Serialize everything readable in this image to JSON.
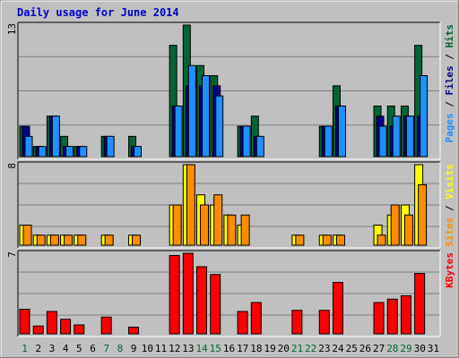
{
  "chart_data": {
    "type": "bar",
    "title": "Daily usage for June 2014",
    "categories": [
      "1",
      "2",
      "3",
      "4",
      "5",
      "6",
      "7",
      "8",
      "9",
      "10",
      "11",
      "12",
      "13",
      "14",
      "15",
      "16",
      "17",
      "18",
      "19",
      "20",
      "21",
      "22",
      "23",
      "24",
      "25",
      "26",
      "27",
      "28",
      "29",
      "30",
      "31"
    ],
    "weekend_days": [
      "1",
      "7",
      "8",
      "14",
      "15",
      "21",
      "22",
      "28",
      "29"
    ],
    "panels": [
      {
        "id": "hits-files-pages",
        "max_label": "13",
        "ylim": [
          0,
          13
        ],
        "legend": [
          "Pages",
          "Files",
          "Hits"
        ],
        "series": [
          {
            "name": "Hits",
            "color": "#006633",
            "values": [
              3,
              1,
              4,
              2,
              1,
              0,
              2,
              0,
              2,
              0,
              0,
              11,
              13,
              9,
              8,
              0,
              3,
              4,
              0,
              0,
              0,
              0,
              3,
              7,
              0,
              0,
              5,
              5,
              5,
              11,
              0
            ]
          },
          {
            "name": "Files",
            "color": "#00008b",
            "values": [
              3,
              1,
              4,
              1,
              1,
              0,
              2,
              0,
              1,
              0,
              0,
              5,
              7,
              7,
              7,
              0,
              3,
              2,
              0,
              0,
              0,
              0,
              3,
              5,
              0,
              0,
              4,
              3,
              4,
              4,
              0
            ]
          },
          {
            "name": "Pages",
            "color": "#1e90ff",
            "values": [
              2,
              1,
              4,
              1,
              1,
              0,
              2,
              0,
              1,
              0,
              0,
              5,
              9,
              8,
              6,
              0,
              3,
              2,
              0,
              0,
              0,
              0,
              3,
              5,
              0,
              0,
              3,
              4,
              4,
              8,
              0
            ]
          }
        ]
      },
      {
        "id": "visits-sites",
        "max_label": "8",
        "ylim": [
          0,
          8
        ],
        "legend": [
          "Sites",
          "Visits"
        ],
        "series": [
          {
            "name": "Visits",
            "color": "#ffff00",
            "values": [
              2,
              1,
              1,
              1,
              1,
              0,
              1,
              0,
              1,
              0,
              0,
              4,
              8,
              5,
              4,
              3,
              2,
              0,
              0,
              0,
              1,
              0,
              1,
              1,
              0,
              0,
              2,
              3,
              4,
              8,
              0
            ]
          },
          {
            "name": "Sites",
            "color": "#ff8c00",
            "values": [
              2,
              1,
              1,
              1,
              1,
              0,
              1,
              0,
              1,
              0,
              0,
              4,
              8,
              4,
              5,
              3,
              3,
              0,
              0,
              0,
              1,
              0,
              1,
              1,
              0,
              0,
              1,
              4,
              3,
              6,
              0
            ]
          }
        ]
      },
      {
        "id": "kbytes",
        "max_label": "7",
        "ylim": [
          0,
          7.2
        ],
        "legend": [
          "KBytes"
        ],
        "series": [
          {
            "name": "KBytes",
            "color": "#ff0000",
            "values": [
              2.2,
              0.7,
              2.0,
              1.3,
              0.8,
              0,
              1.5,
              0,
              0.6,
              0,
              0,
              7.0,
              7.2,
              6.0,
              5.3,
              0,
              2.0,
              2.8,
              0,
              0,
              2.1,
              0,
              2.1,
              4.6,
              0,
              0,
              2.8,
              3.1,
              3.4,
              5.4,
              0
            ]
          }
        ]
      }
    ],
    "colors": {
      "title": "#0000cc",
      "weekday_label": "#000000",
      "weekend_label": "#006633",
      "hits": "#006633",
      "files": "#00008b",
      "pages": "#1e90ff",
      "visits": "#ffff00",
      "sites": "#ff8c00",
      "kbytes": "#ff0000"
    }
  }
}
